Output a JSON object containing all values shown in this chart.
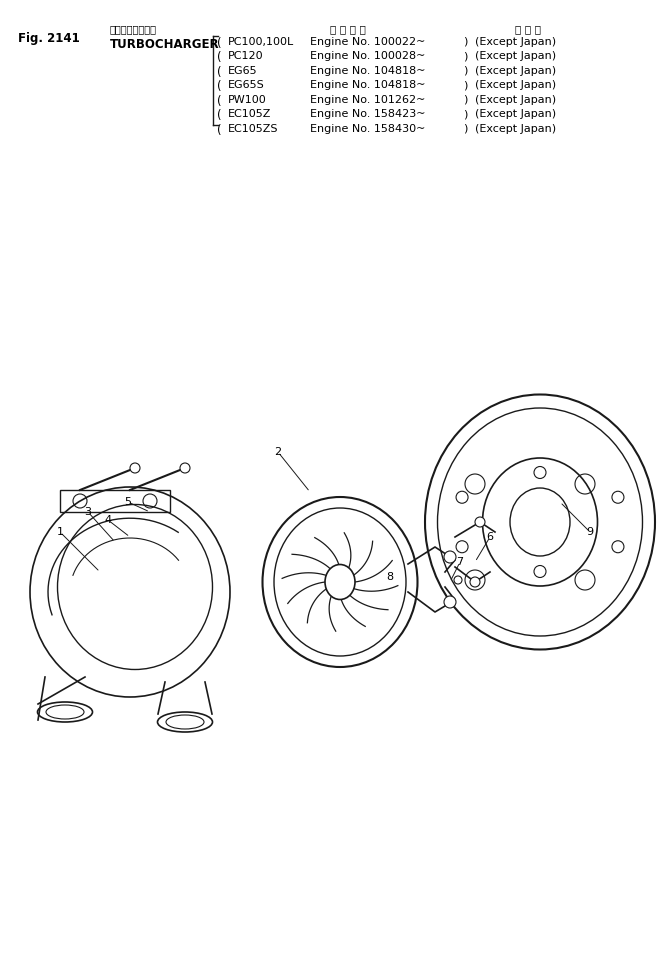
{
  "fig_number": "Fig. 2141",
  "japanese_title": "ターボチャージャ",
  "english_title": "TURBOCHARGER",
  "header_col2": "適 用 号 機",
  "header_col3": "海 外 向",
  "machines": [
    {
      "model": "PC100,100L",
      "engine": "Engine No. 100022~",
      "region": "(Except Japan)"
    },
    {
      "model": "PC120",
      "engine": "Engine No. 100028~",
      "region": "(Except Japan)"
    },
    {
      "model": "EG65",
      "engine": "Engine No. 104818~",
      "region": "(Except Japan)"
    },
    {
      "model": "EG65S",
      "engine": "Engine No. 104818~",
      "region": "(Except Japan)"
    },
    {
      "model": "PW100",
      "engine": "Engine No. 101262~",
      "region": "(Except Japan)"
    },
    {
      "model": "EC105Z",
      "engine": "Engine No. 158423~",
      "region": "(Except Japan)"
    },
    {
      "model": "EC105ZS",
      "engine": "Engine No. 158430~",
      "region": "(Except Japan)"
    }
  ],
  "bg_color": "#ffffff",
  "line_color": "#1a1a1a",
  "text_color": "#000000",
  "fig_label_fontsize": 8.5,
  "body_fontsize": 7.5,
  "header_fontsize": 7.5
}
